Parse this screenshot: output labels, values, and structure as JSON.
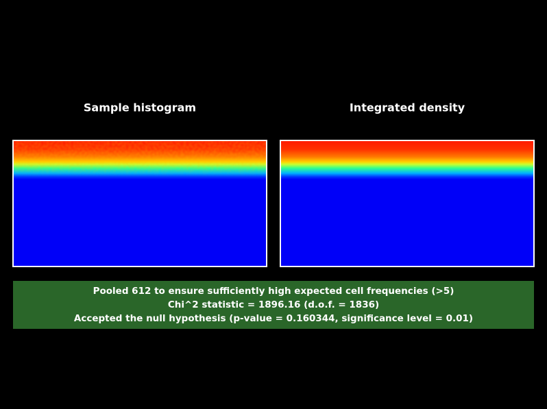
{
  "panels": [
    {
      "title": "Sample histogram"
    },
    {
      "title": "Integrated density"
    }
  ],
  "message": {
    "lines": [
      "Pooled 612 to ensure sufficiently high expected cell frequencies (>5)",
      "Chi^2 statistic = 1896.16 (d.o.f. = 1836)",
      "Accepted the null hypothesis (p-value = 0.160344, significance level = 0.01)"
    ]
  }
}
